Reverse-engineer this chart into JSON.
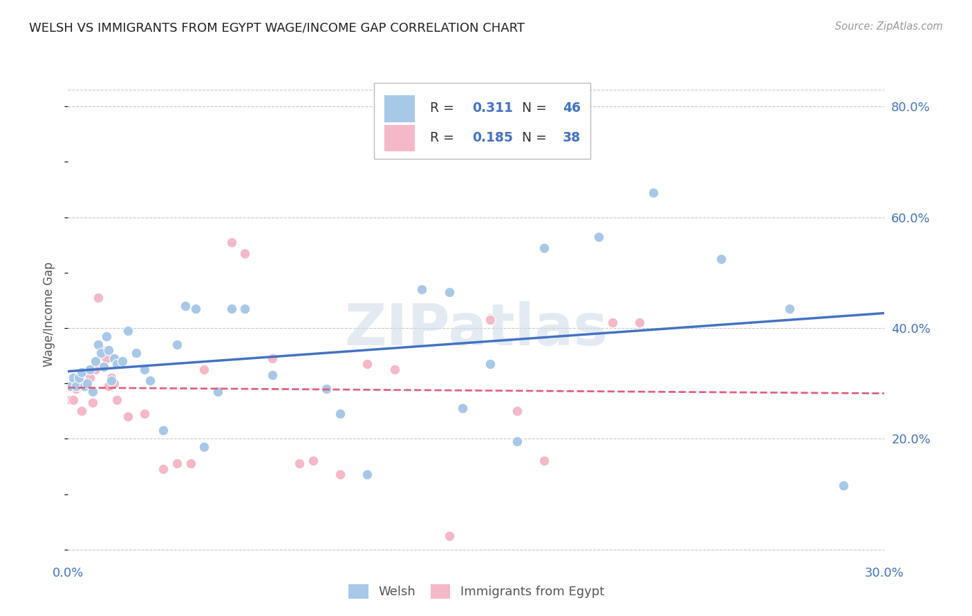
{
  "title": "WELSH VS IMMIGRANTS FROM EGYPT WAGE/INCOME GAP CORRELATION CHART",
  "source": "Source: ZipAtlas.com",
  "ylabel": "Wage/Income Gap",
  "xlim": [
    0.0,
    0.3
  ],
  "ylim": [
    -0.02,
    0.87
  ],
  "blue_color": "#a8c8e8",
  "pink_color": "#f5b8c8",
  "trend_blue": "#4472c4",
  "trend_pink": "#e06080",
  "background_color": "#ffffff",
  "grid_color": "#c8c8c8",
  "title_color": "#222222",
  "axis_tick_color": "#4472c4",
  "watermark": "ZIPatlas",
  "welsh_x": [
    0.001,
    0.002,
    0.003,
    0.004,
    0.005,
    0.006,
    0.007,
    0.008,
    0.009,
    0.01,
    0.011,
    0.012,
    0.013,
    0.014,
    0.015,
    0.016,
    0.017,
    0.018,
    0.02,
    0.022,
    0.025,
    0.028,
    0.03,
    0.035,
    0.04,
    0.043,
    0.047,
    0.05,
    0.055,
    0.06,
    0.065,
    0.075,
    0.095,
    0.1,
    0.11,
    0.13,
    0.14,
    0.145,
    0.155,
    0.165,
    0.175,
    0.195,
    0.215,
    0.24,
    0.265,
    0.285
  ],
  "welsh_y": [
    0.295,
    0.31,
    0.295,
    0.31,
    0.32,
    0.295,
    0.3,
    0.325,
    0.285,
    0.34,
    0.37,
    0.355,
    0.33,
    0.385,
    0.36,
    0.305,
    0.345,
    0.335,
    0.34,
    0.395,
    0.355,
    0.325,
    0.305,
    0.215,
    0.37,
    0.44,
    0.435,
    0.185,
    0.285,
    0.435,
    0.435,
    0.315,
    0.29,
    0.245,
    0.135,
    0.47,
    0.465,
    0.255,
    0.335,
    0.195,
    0.545,
    0.565,
    0.645,
    0.525,
    0.435,
    0.115
  ],
  "egypt_x": [
    0.001,
    0.002,
    0.003,
    0.004,
    0.005,
    0.006,
    0.007,
    0.008,
    0.009,
    0.01,
    0.011,
    0.012,
    0.013,
    0.014,
    0.015,
    0.016,
    0.017,
    0.018,
    0.022,
    0.028,
    0.035,
    0.04,
    0.045,
    0.05,
    0.06,
    0.065,
    0.075,
    0.085,
    0.09,
    0.1,
    0.11,
    0.12,
    0.14,
    0.155,
    0.165,
    0.175,
    0.2,
    0.21
  ],
  "egypt_y": [
    0.27,
    0.27,
    0.29,
    0.295,
    0.25,
    0.3,
    0.295,
    0.31,
    0.265,
    0.325,
    0.455,
    0.36,
    0.35,
    0.345,
    0.295,
    0.31,
    0.3,
    0.27,
    0.24,
    0.245,
    0.145,
    0.155,
    0.155,
    0.325,
    0.555,
    0.535,
    0.345,
    0.155,
    0.16,
    0.135,
    0.335,
    0.325,
    0.025,
    0.415,
    0.25,
    0.16,
    0.41,
    0.41
  ]
}
